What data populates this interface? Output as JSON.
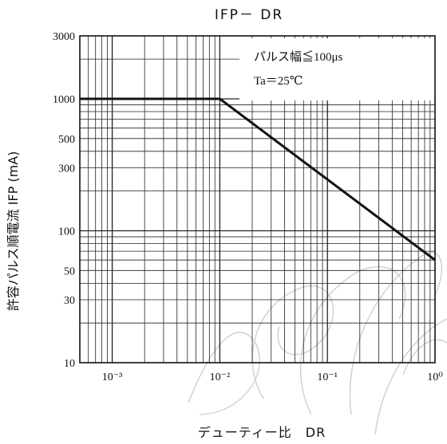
{
  "chart_data": {
    "type": "line",
    "title": "IFP－ DR",
    "xlabel": "デューティー比　DR",
    "ylabel": "許容パルス順電流 IFP (mA)",
    "x_scale": "log",
    "y_scale": "log",
    "xlim": [
      0.0005,
      1
    ],
    "ylim": [
      10,
      3000
    ],
    "grid": true,
    "x_tick_labels": [
      {
        "value": 0.001,
        "text": "10⁻³"
      },
      {
        "value": 0.01,
        "text": "10⁻²"
      },
      {
        "value": 0.1,
        "text": "10⁻¹"
      },
      {
        "value": 1,
        "text": "10⁰"
      }
    ],
    "y_tick_labels": [
      {
        "value": 3000,
        "text": "3000"
      },
      {
        "value": 1000,
        "text": "1000"
      },
      {
        "value": 500,
        "text": "500"
      },
      {
        "value": 300,
        "text": "300"
      },
      {
        "value": 100,
        "text": "100"
      },
      {
        "value": 50,
        "text": "50"
      },
      {
        "value": 30,
        "text": "30"
      },
      {
        "value": 10,
        "text": "10"
      }
    ],
    "series": [
      {
        "x": [
          0.0005,
          0.01,
          1
        ],
        "y": [
          1000,
          1000,
          60
        ]
      }
    ],
    "annotations": [
      "パルス幅≦100μs",
      "Ta＝25℃"
    ],
    "colors": {
      "line": "#111111",
      "grid": "#222222",
      "watermark": "#c8c8c8"
    }
  }
}
